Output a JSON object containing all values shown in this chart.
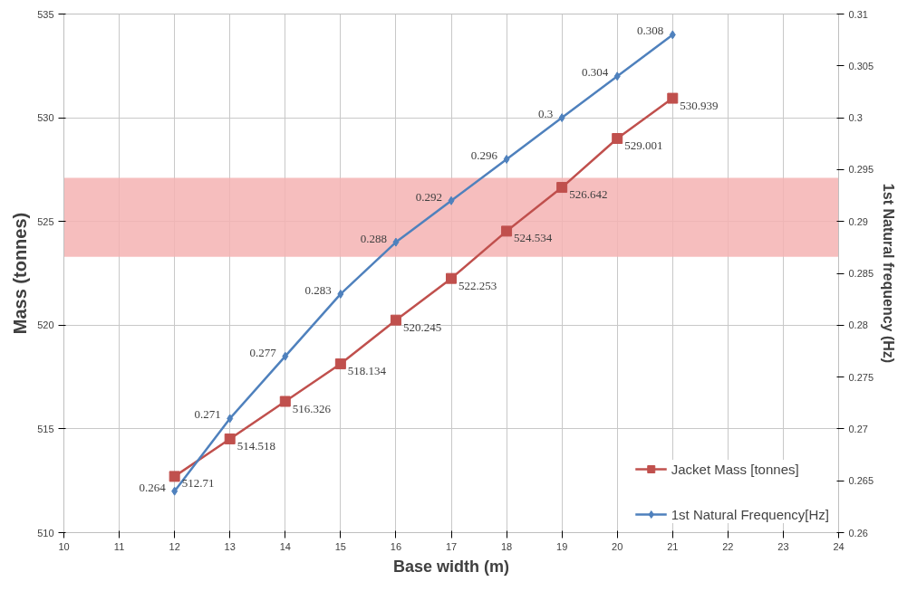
{
  "chart_data": {
    "type": "line",
    "xlabel": "Base width (m)",
    "ylabel": "Mass (tonnes)",
    "y2label": "1st Natural frequency (Hz)",
    "x": [
      12,
      13,
      14,
      15,
      16,
      17,
      18,
      19,
      20,
      21
    ],
    "series": [
      {
        "name": "Jacket Mass [tonnes]",
        "color": "#c0504d",
        "marker": "square",
        "values": [
          512.71,
          514.518,
          516.326,
          518.134,
          520.245,
          522.253,
          524.534,
          526.642,
          529.001,
          530.939
        ]
      },
      {
        "name": "1st Natural Frequency[Hz]",
        "color": "#4f81bd",
        "marker": "diamond",
        "axis": "y2",
        "values": [
          0.264,
          0.271,
          0.277,
          0.283,
          0.288,
          0.292,
          0.296,
          0.3,
          0.304,
          0.308
        ]
      }
    ],
    "xlim": [
      10,
      24
    ],
    "xticks": [
      10,
      11,
      12,
      13,
      14,
      15,
      16,
      17,
      18,
      19,
      20,
      21,
      22,
      23,
      24
    ],
    "ylim": [
      510,
      535
    ],
    "yticks": [
      510,
      515,
      520,
      525,
      530,
      535
    ],
    "y2lim": [
      0.26,
      0.31
    ],
    "y2ticks": [
      0.26,
      0.265,
      0.27,
      0.275,
      0.28,
      0.285,
      0.29,
      0.295,
      0.3,
      0.305,
      0.31
    ],
    "bands": [
      {
        "axis": "y",
        "from": 523.3,
        "to": 527.1,
        "color": "#f4b3b3"
      }
    ],
    "grid": true,
    "legend": "bottom right",
    "data_labels": true,
    "line_style": "solid"
  }
}
